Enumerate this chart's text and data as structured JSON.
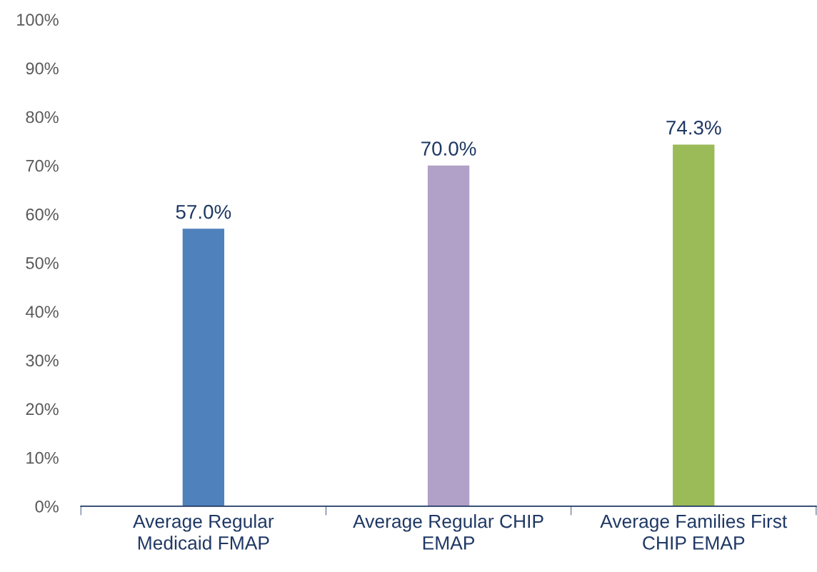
{
  "chart_data": {
    "type": "bar",
    "categories": [
      "Average Regular\nMedicaid FMAP",
      "Average Regular CHIP\nEMAP",
      "Average Families First\nCHIP EMAP"
    ],
    "values": [
      57.0,
      70.0,
      74.3
    ],
    "colors": [
      "#4f81bd",
      "#b1a0c7",
      "#9bbb59"
    ],
    "value_labels": [
      "57.0%",
      "70.0%",
      "74.3%"
    ],
    "ylim": [
      0,
      100
    ],
    "yticks": [
      {
        "value": 0,
        "label": "0%"
      },
      {
        "value": 10,
        "label": "10%"
      },
      {
        "value": 20,
        "label": "20%"
      },
      {
        "value": 30,
        "label": "30%"
      },
      {
        "value": 40,
        "label": "40%"
      },
      {
        "value": 50,
        "label": "50%"
      },
      {
        "value": 60,
        "label": "60%"
      },
      {
        "value": 70,
        "label": "70%"
      },
      {
        "value": 80,
        "label": "80%"
      },
      {
        "value": 90,
        "label": "90%"
      },
      {
        "value": 100,
        "label": "100%"
      }
    ],
    "grid": false,
    "legend": false
  }
}
